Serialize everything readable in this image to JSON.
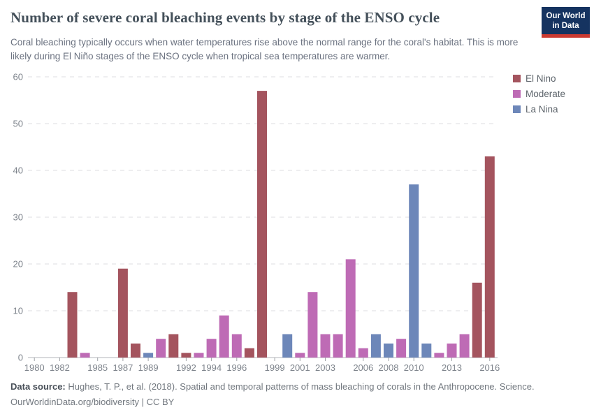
{
  "header": {
    "title": "Number of severe coral bleaching events by stage of the ENSO cycle",
    "subtitle": "Coral bleaching typically occurs when water temperatures rise above the normal range for the coral's habitat. This is more likely during El Niño stages of the ENSO cycle when tropical sea temperatures are warmer.",
    "logo": {
      "line1": "Our World",
      "line2": "in Data"
    }
  },
  "chart_data": {
    "type": "bar",
    "title": "Number of severe coral bleaching events by stage of the ENSO cycle",
    "xlabel": "",
    "ylabel": "",
    "x_range": [
      1980,
      2016
    ],
    "ylim": [
      0,
      60
    ],
    "y_ticks": [
      0,
      10,
      20,
      30,
      40,
      50,
      60
    ],
    "x_tick_labels": [
      1980,
      1982,
      1985,
      1987,
      1989,
      1992,
      1994,
      1996,
      1999,
      2001,
      2003,
      2006,
      2008,
      2010,
      2013,
      2016
    ],
    "grid": "horizontal-dashed",
    "legend_position": "right",
    "series": [
      {
        "name": "El Nino",
        "color": "#a4545e"
      },
      {
        "name": "Moderate",
        "color": "#be6bb5"
      },
      {
        "name": "La Nina",
        "color": "#6d87b9"
      }
    ],
    "zero_years": [
      1980,
      1981,
      1982,
      1985,
      1986,
      1999
    ],
    "bars": [
      {
        "year": 1983,
        "value": 14,
        "series": "El Nino"
      },
      {
        "year": 1984,
        "value": 1,
        "series": "Moderate"
      },
      {
        "year": 1987,
        "value": 19,
        "series": "El Nino"
      },
      {
        "year": 1988,
        "value": 3,
        "series": "El Nino"
      },
      {
        "year": 1989,
        "value": 1,
        "series": "La Nina"
      },
      {
        "year": 1990,
        "value": 4,
        "series": "Moderate"
      },
      {
        "year": 1991,
        "value": 5,
        "series": "El Nino"
      },
      {
        "year": 1992,
        "value": 1,
        "series": "El Nino"
      },
      {
        "year": 1993,
        "value": 1,
        "series": "Moderate"
      },
      {
        "year": 1994,
        "value": 4,
        "series": "Moderate"
      },
      {
        "year": 1995,
        "value": 9,
        "series": "Moderate"
      },
      {
        "year": 1996,
        "value": 5,
        "series": "Moderate"
      },
      {
        "year": 1997,
        "value": 2,
        "series": "El Nino"
      },
      {
        "year": 1998,
        "value": 57,
        "series": "El Nino"
      },
      {
        "year": 2000,
        "value": 5,
        "series": "La Nina"
      },
      {
        "year": 2001,
        "value": 1,
        "series": "Moderate"
      },
      {
        "year": 2002,
        "value": 14,
        "series": "Moderate"
      },
      {
        "year": 2003,
        "value": 5,
        "series": "Moderate"
      },
      {
        "year": 2004,
        "value": 5,
        "series": "Moderate"
      },
      {
        "year": 2005,
        "value": 21,
        "series": "Moderate"
      },
      {
        "year": 2006,
        "value": 2,
        "series": "Moderate"
      },
      {
        "year": 2007,
        "value": 5,
        "series": "La Nina"
      },
      {
        "year": 2008,
        "value": 3,
        "series": "La Nina"
      },
      {
        "year": 2009,
        "value": 4,
        "series": "Moderate"
      },
      {
        "year": 2010,
        "value": 37,
        "series": "La Nina"
      },
      {
        "year": 2011,
        "value": 3,
        "series": "La Nina"
      },
      {
        "year": 2012,
        "value": 1,
        "series": "Moderate"
      },
      {
        "year": 2013,
        "value": 3,
        "series": "Moderate"
      },
      {
        "year": 2014,
        "value": 5,
        "series": "Moderate"
      },
      {
        "year": 2015,
        "value": 16,
        "series": "El Nino"
      },
      {
        "year": 2016,
        "value": 43,
        "series": "El Nino"
      }
    ]
  },
  "footer": {
    "source_label": "Data source:",
    "source_text": " Hughes, T. P., et al. (2018). Spatial and temporal patterns of mass bleaching of corals in the Anthropocene. Science.",
    "credit_line": "OurWorldinData.org/biodiversity | CC BY"
  }
}
